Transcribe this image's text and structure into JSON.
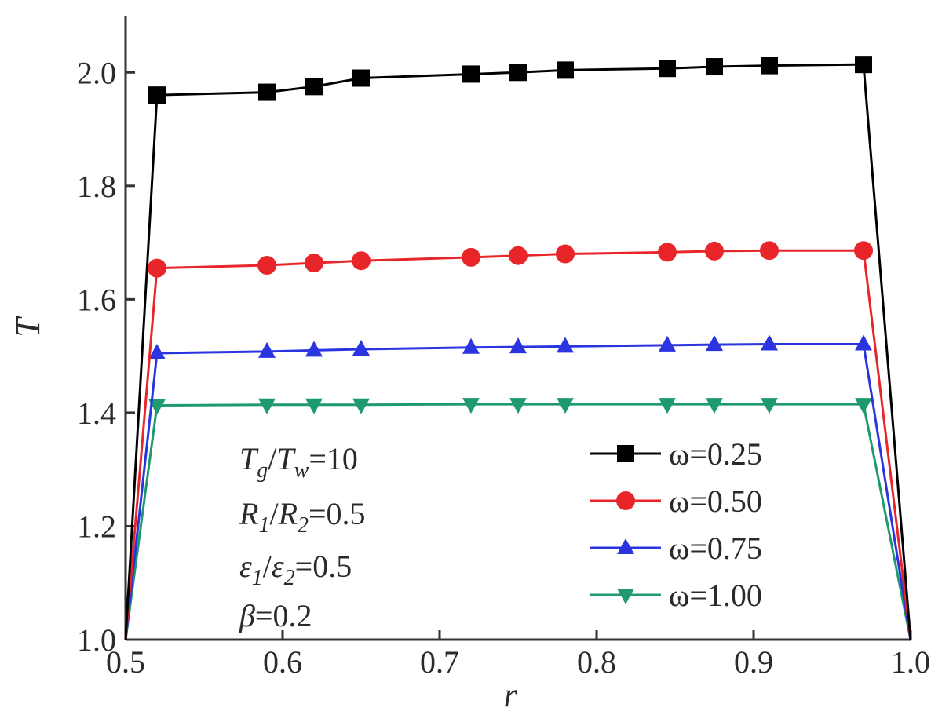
{
  "chart_data": {
    "type": "line",
    "title": "",
    "xlabel": "r",
    "ylabel": "T",
    "xlim": [
      0.5,
      1.0
    ],
    "ylim": [
      1.0,
      2.1
    ],
    "xticks": [
      0.5,
      0.6,
      0.7,
      0.8,
      0.9,
      1.0
    ],
    "xtick_labels": [
      "0.5",
      "0.6",
      "0.7",
      "0.8",
      "0.9",
      "1.0"
    ],
    "yticks": [
      1.0,
      1.2,
      1.4,
      1.6,
      1.8,
      2.0
    ],
    "ytick_labels": [
      "1.0",
      "1.2",
      "1.4",
      "1.6",
      "1.8",
      "2.0"
    ],
    "grid": false,
    "legend_position": "lower-right",
    "series": [
      {
        "name": "ω=0.25",
        "color": "#000000",
        "marker": "square",
        "x": [
          0.5,
          0.52,
          0.59,
          0.62,
          0.65,
          0.72,
          0.75,
          0.78,
          0.845,
          0.875,
          0.91,
          0.97,
          1.0
        ],
        "y": [
          1.0,
          1.96,
          1.965,
          1.975,
          1.99,
          1.997,
          2.0,
          2.004,
          2.007,
          2.01,
          2.012,
          2.014,
          1.0
        ]
      },
      {
        "name": "ω=0.50",
        "color": "#e8262a",
        "marker": "circle",
        "x": [
          0.5,
          0.52,
          0.59,
          0.62,
          0.65,
          0.72,
          0.75,
          0.78,
          0.845,
          0.875,
          0.91,
          0.97,
          1.0
        ],
        "y": [
          1.0,
          1.655,
          1.66,
          1.664,
          1.668,
          1.674,
          1.677,
          1.68,
          1.683,
          1.685,
          1.686,
          1.686,
          1.0
        ]
      },
      {
        "name": "ω=0.75",
        "color": "#2a35e0",
        "marker": "triangle-up",
        "x": [
          0.5,
          0.52,
          0.59,
          0.62,
          0.65,
          0.72,
          0.75,
          0.78,
          0.845,
          0.875,
          0.91,
          0.97,
          1.0
        ],
        "y": [
          1.0,
          1.505,
          1.508,
          1.51,
          1.512,
          1.515,
          1.516,
          1.517,
          1.519,
          1.52,
          1.521,
          1.521,
          1.0
        ]
      },
      {
        "name": "ω=1.00",
        "color": "#1f9a6e",
        "marker": "triangle-down",
        "x": [
          0.5,
          0.52,
          0.59,
          0.62,
          0.65,
          0.72,
          0.75,
          0.78,
          0.845,
          0.875,
          0.91,
          0.97,
          1.0
        ],
        "y": [
          1.0,
          1.413,
          1.414,
          1.414,
          1.414,
          1.415,
          1.415,
          1.415,
          1.415,
          1.415,
          1.415,
          1.415,
          1.0
        ]
      }
    ],
    "annotations": [
      {
        "base": "T",
        "sub": "g",
        "rest": "/",
        "base2": "T",
        "sub2": "w",
        "value": "=10"
      },
      {
        "base": "R",
        "sub": "1",
        "rest": "/",
        "base2": "R",
        "sub2": "2",
        "value": "=0.5"
      },
      {
        "base": "ε",
        "sub": "1",
        "rest": "/",
        "base2": "ε",
        "sub2": "2",
        "value": "=0.5"
      },
      {
        "base": "β",
        "sub": "",
        "rest": "",
        "base2": "",
        "sub2": "",
        "value": "=0.2"
      }
    ]
  }
}
